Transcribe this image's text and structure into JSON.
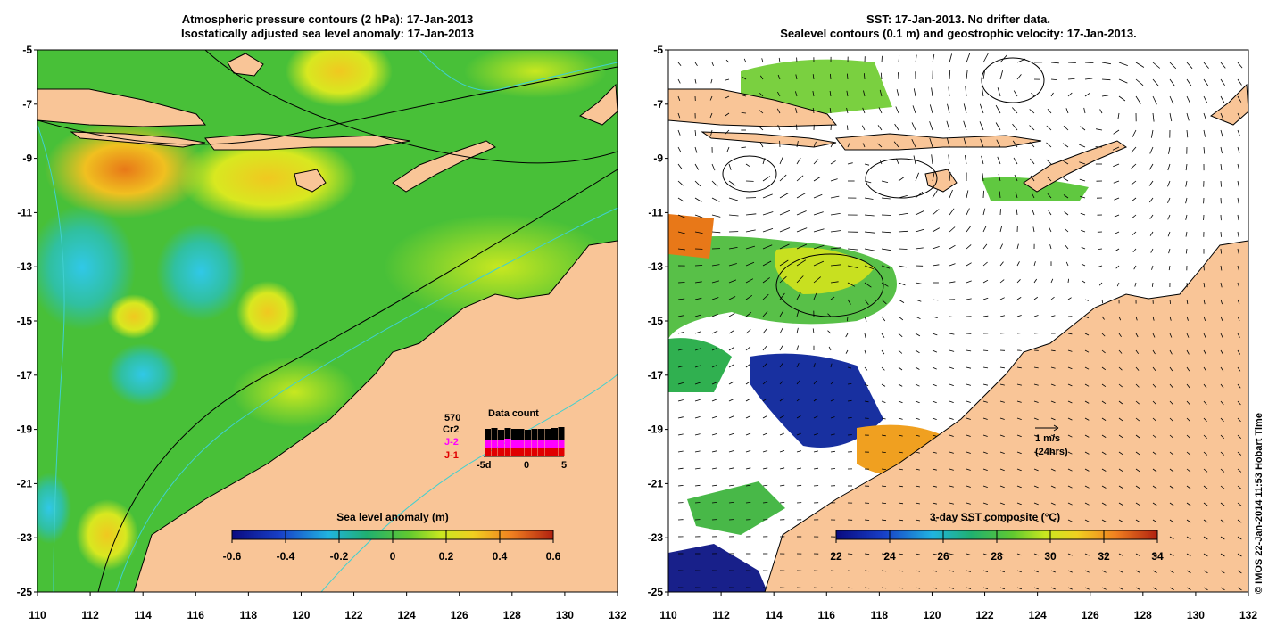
{
  "left_panel": {
    "title_line1": "Atmospheric pressure contours (2 hPa): 17-Jan-2013",
    "title_line2": "Isostatically adjusted sea level anomaly: 17-Jan-2013",
    "colorbar_label": "Sea level anomaly (m)",
    "colorbar_ticks": [
      "-0.6",
      "-0.4",
      "-0.2",
      "0",
      "0.2",
      "0.4",
      "0.6"
    ],
    "data_count": {
      "title": "Data count",
      "total": "570",
      "labels": [
        "Cr2",
        "J-2",
        "J-1"
      ],
      "axis_ticks": [
        "-5d",
        "0",
        "5"
      ]
    }
  },
  "right_panel": {
    "title_line1": "SST: 17-Jan-2013. No drifter data.",
    "title_line2": "Sealevel contours (0.1 m) and geostrophic velocity: 17-Jan-2013.",
    "colorbar_label": "3-day SST composite (°C)",
    "colorbar_ticks": [
      "22",
      "24",
      "26",
      "28",
      "30",
      "32",
      "34"
    ],
    "velocity_scale_label": "1 m/s",
    "velocity_scale_sub": "(24hrs)"
  },
  "axes": {
    "x_ticks": [
      "110",
      "112",
      "114",
      "116",
      "118",
      "120",
      "122",
      "124",
      "126",
      "128",
      "130",
      "132"
    ],
    "y_ticks": [
      "-5",
      "-7",
      "-9",
      "-11",
      "-13",
      "-15",
      "-17",
      "-19",
      "-21",
      "-23",
      "-25"
    ]
  },
  "credit": "© IMOS 22-Jan-2014 11:53 Hobart Time",
  "colors": {
    "land": "#f9c597",
    "ocean_left": "#55c435",
    "contour": "#000000",
    "bathymetry": "#40d0d0"
  }
}
